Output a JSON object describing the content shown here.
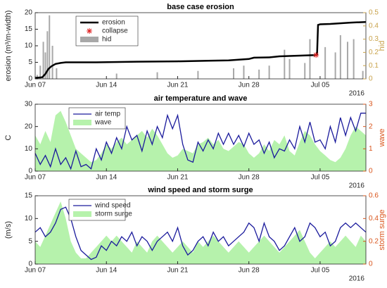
{
  "chart_data": [
    {
      "type": "line",
      "title": "base case erosion",
      "ylabel": "erosion (m³/m-width)",
      "y2label": "hid",
      "xlim": [
        0,
        32.5
      ],
      "xticks": [
        {
          "value": 0,
          "label": "Jun 07"
        },
        {
          "value": 7,
          "label": "Jun 14"
        },
        {
          "value": 14,
          "label": "Jun 21"
        },
        {
          "value": 21,
          "label": "Jun 28"
        },
        {
          "value": 28,
          "label": "Jul 05"
        }
      ],
      "annotation": "2016",
      "ylim": [
        0,
        20
      ],
      "yticks": [
        0,
        5,
        10,
        15,
        20
      ],
      "y2lim": [
        0,
        0.5
      ],
      "y2ticks": [
        0,
        0.1,
        0.2,
        0.3,
        0.4,
        0.5
      ],
      "y2color": "#c8a24a",
      "series": [
        {
          "name": "erosion",
          "style": "line",
          "color": "#000000",
          "x": [
            0,
            0.7,
            1,
            1.3,
            1.6,
            2,
            2.5,
            3,
            6,
            10,
            14,
            17,
            19,
            20,
            21,
            21.5,
            23,
            24,
            27.5,
            27.7,
            27.8,
            28,
            29,
            31,
            32.5
          ],
          "values": [
            0.3,
            0.5,
            1.5,
            3,
            3.8,
            4.5,
            4.8,
            5,
            5,
            5.2,
            5.3,
            5.5,
            5.6,
            5.8,
            6,
            6.4,
            6.5,
            6.8,
            7.2,
            7.3,
            16.3,
            16.5,
            16.6,
            17,
            17.2
          ]
        },
        {
          "name": "collapse",
          "style": "marker",
          "color": "#e02020",
          "x": [
            27.6
          ],
          "values": [
            7.2
          ]
        },
        {
          "name": "hid",
          "style": "bar",
          "axis": "y2",
          "color": "#a8a8a8",
          "x": [
            0.2,
            0.5,
            0.8,
            1,
            1.2,
            1.4,
            1.7,
            2.1,
            8,
            12,
            16,
            19.5,
            20.5,
            22,
            23,
            24.5,
            25,
            26.5,
            27,
            28.5,
            29.5,
            30,
            30.7,
            31.3,
            32.2
          ],
          "values": [
            0.03,
            0.1,
            0.28,
            0.2,
            0.36,
            0.48,
            0.25,
            0.08,
            0.04,
            0.05,
            0.06,
            0.08,
            0.1,
            0.07,
            0.1,
            0.22,
            0.15,
            0.12,
            0.3,
            0.24,
            0.2,
            0.33,
            0.28,
            0.3,
            0.06
          ]
        }
      ]
    },
    {
      "type": "line",
      "title": "air temperature and wave",
      "ylabel": "C",
      "y2label": "wave",
      "xlim": [
        0,
        32.5
      ],
      "xticks": [
        {
          "value": 0,
          "label": "Jun 07"
        },
        {
          "value": 7,
          "label": "Jun 14"
        },
        {
          "value": 14,
          "label": "Jun 21"
        },
        {
          "value": 21,
          "label": "Jun 28"
        },
        {
          "value": 28,
          "label": "Jul 05"
        }
      ],
      "annotation": "2016",
      "ylim": [
        0,
        30
      ],
      "yticks": [
        0,
        10,
        20,
        30
      ],
      "y2lim": [
        0,
        3
      ],
      "y2ticks": [
        0,
        1,
        2,
        3
      ],
      "y2color": "#d95319",
      "x": [
        0,
        0.5,
        1,
        1.5,
        2,
        2.5,
        3,
        3.5,
        4,
        4.5,
        5,
        5.5,
        6,
        6.5,
        7,
        7.5,
        8,
        8.5,
        9,
        9.5,
        10,
        10.5,
        11,
        11.5,
        12,
        12.5,
        13,
        13.5,
        14,
        14.5,
        15,
        15.5,
        16,
        16.5,
        17,
        17.5,
        18,
        18.5,
        19,
        19.5,
        20,
        20.5,
        21,
        21.5,
        22,
        22.5,
        23,
        23.5,
        24,
        24.5,
        25,
        25.5,
        26,
        26.5,
        27,
        27.5,
        28,
        28.5,
        29,
        29.5,
        30,
        30.5,
        31,
        31.5,
        32,
        32.5
      ],
      "series": [
        {
          "name": "air temp",
          "style": "line",
          "color": "#1a1a9c",
          "values": [
            8,
            3,
            7,
            2,
            10,
            3,
            6,
            1,
            9,
            2,
            3,
            1,
            10,
            5,
            13,
            8,
            15,
            10,
            20,
            14,
            16,
            9,
            18,
            12,
            20,
            15,
            25,
            19,
            25,
            12,
            5,
            4,
            13,
            9,
            14,
            10,
            17,
            12,
            17,
            12,
            16,
            11,
            17,
            12,
            14,
            8,
            13,
            6,
            10,
            9,
            14,
            10,
            20,
            13,
            22,
            13,
            14,
            10,
            20,
            13,
            24,
            16,
            24,
            18,
            26,
            26
          ]
        },
        {
          "name": "wave",
          "style": "area",
          "axis": "y2",
          "color": "#b6f2ac",
          "values": [
            1.6,
            1.2,
            1.8,
            1.3,
            2.5,
            2.7,
            2.2,
            1.6,
            1.0,
            0.8,
            0.6,
            0.4,
            0.5,
            0.8,
            1.2,
            1.0,
            1.3,
            1.5,
            1.2,
            1.4,
            1.6,
            1.8,
            1.5,
            1.9,
            1.6,
            1.2,
            0.8,
            0.6,
            0.7,
            1.0,
            0.9,
            0.8,
            1.2,
            1.3,
            1.5,
            1.2,
            1.4,
            1.0,
            0.9,
            1.1,
            1.3,
            1.2,
            0.8,
            0.6,
            0.8,
            1.2,
            0.9,
            1.4,
            1.2,
            1.6,
            0.9,
            0.7,
            1.3,
            1.8,
            1.6,
            1.2,
            0.9,
            0.7,
            0.5,
            0.4,
            0.6,
            1.0,
            1.6,
            2.0,
            1.8,
            1.6
          ]
        }
      ]
    },
    {
      "type": "line",
      "title": "wind speed and storm surge",
      "ylabel": "(m/s)",
      "y2label": "storm surge",
      "xlim": [
        0,
        32.5
      ],
      "xticks": [
        {
          "value": 0,
          "label": "Jun 07"
        },
        {
          "value": 7,
          "label": "Jun 14"
        },
        {
          "value": 14,
          "label": "Jun 21"
        },
        {
          "value": 21,
          "label": "Jun 28"
        },
        {
          "value": 28,
          "label": "Jul 05"
        }
      ],
      "annotation": "2016",
      "ylim": [
        0,
        15
      ],
      "yticks": [
        0,
        5,
        10,
        15
      ],
      "y2lim": [
        0,
        0.6
      ],
      "y2ticks": [
        0,
        0.2,
        0.4,
        0.6
      ],
      "y2color": "#d95319",
      "x": [
        0,
        0.5,
        1,
        1.5,
        2,
        2.5,
        3,
        3.5,
        4,
        4.5,
        5,
        5.5,
        6,
        6.5,
        7,
        7.5,
        8,
        8.5,
        9,
        9.5,
        10,
        10.5,
        11,
        11.5,
        12,
        12.5,
        13,
        13.5,
        14,
        14.5,
        15,
        15.5,
        16,
        16.5,
        17,
        17.5,
        18,
        18.5,
        19,
        19.5,
        20,
        20.5,
        21,
        21.5,
        22,
        22.5,
        23,
        23.5,
        24,
        24.5,
        25,
        25.5,
        26,
        26.5,
        27,
        27.5,
        28,
        28.5,
        29,
        29.5,
        30,
        30.5,
        31,
        31.5,
        32,
        32.5
      ],
      "series": [
        {
          "name": "wind speed",
          "style": "line",
          "color": "#1a1a9c",
          "values": [
            7,
            8,
            6,
            7,
            9,
            12,
            12.5,
            10,
            6,
            3,
            2,
            1,
            1.5,
            4,
            3,
            5,
            4,
            6,
            5,
            7,
            4,
            6,
            5,
            3,
            5,
            6,
            7,
            5,
            8,
            4,
            2,
            3,
            5,
            6,
            4,
            7,
            5,
            6,
            4,
            5,
            6,
            7,
            9,
            8,
            5,
            9,
            6,
            5,
            3,
            4,
            6,
            8,
            5,
            6,
            9,
            8,
            6,
            7,
            4,
            5,
            8,
            9,
            8,
            9,
            8,
            7
          ]
        },
        {
          "name": "storm surge",
          "style": "area",
          "axis": "y2",
          "color": "#b6f2ac",
          "values": [
            0.2,
            0.15,
            0.25,
            0.35,
            0.45,
            0.55,
            0.4,
            0.2,
            0.1,
            0.05,
            0.05,
            0.1,
            0.15,
            0.2,
            0.25,
            0.2,
            0.25,
            0.2,
            0.15,
            0.1,
            0.2,
            0.15,
            0.1,
            0.2,
            0.25,
            0.2,
            0.15,
            0.1,
            0.15,
            0.2,
            0.15,
            0.1,
            0.2,
            0.15,
            0.2,
            0.25,
            0.2,
            0.15,
            0.1,
            0.15,
            0.2,
            0.15,
            0.1,
            0.15,
            0.2,
            0.25,
            0.2,
            0.15,
            0.1,
            0.15,
            0.2,
            0.25,
            0.3,
            0.2,
            0.1,
            0.05,
            0.1,
            0.15,
            0.2,
            0.15,
            0.2,
            0.25,
            0.2,
            0.15,
            0.25,
            0.2
          ]
        }
      ]
    }
  ]
}
